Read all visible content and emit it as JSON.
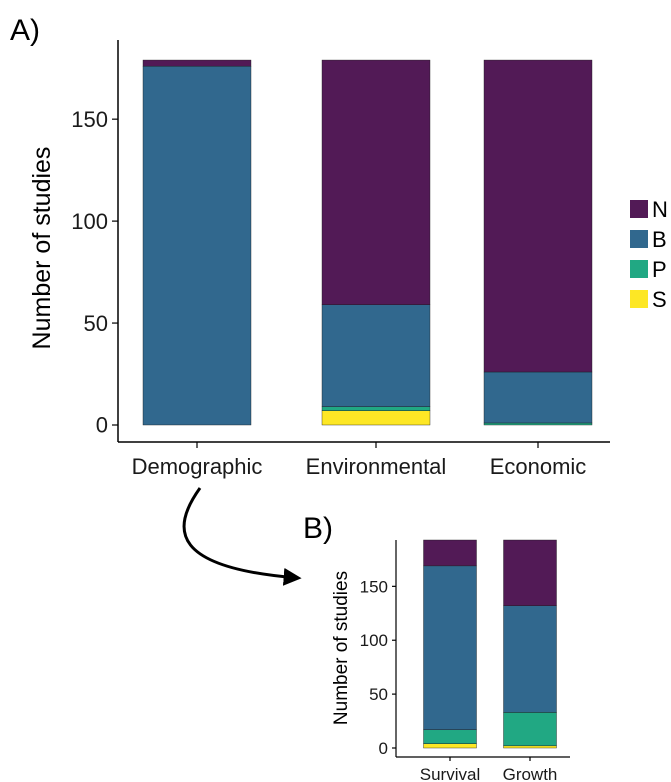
{
  "chart_data": [
    {
      "panel_label": "A)",
      "type": "bar",
      "stacked": true,
      "categories": [
        "Demographic",
        "Environmental",
        "Economic"
      ],
      "series": [
        {
          "name": "S",
          "color": "#FDE725",
          "values": [
            0,
            7,
            0
          ]
        },
        {
          "name": "P",
          "color": "#21A883",
          "values": [
            0,
            2,
            1
          ]
        },
        {
          "name": "B",
          "color": "#31688E",
          "values": [
            176,
            50,
            25
          ]
        },
        {
          "name": "N",
          "color": "#521A56",
          "values": [
            3,
            120,
            153
          ]
        }
      ],
      "xlabel": "",
      "ylabel": "Number of studies",
      "yticks": [
        0,
        50,
        100,
        150
      ],
      "ylim": [
        0,
        180
      ],
      "grid": false,
      "legend": {
        "position": "right",
        "order": [
          "N",
          "B",
          "P",
          "S"
        ]
      }
    },
    {
      "panel_label": "B)",
      "type": "bar",
      "stacked": true,
      "categories": [
        "Survival",
        "Growth"
      ],
      "series": [
        {
          "name": "S",
          "color": "#FDE725",
          "values": [
            4,
            2
          ]
        },
        {
          "name": "P",
          "color": "#21A883",
          "values": [
            13,
            31
          ]
        },
        {
          "name": "B",
          "color": "#31688E",
          "values": [
            152,
            99
          ]
        },
        {
          "name": "N",
          "color": "#521A56",
          "values": [
            24,
            61
          ]
        }
      ],
      "xlabel": "",
      "ylabel": "Number of studies",
      "yticks": [
        0,
        50,
        100,
        150
      ],
      "ylim": [
        0,
        193
      ],
      "grid": false
    }
  ]
}
